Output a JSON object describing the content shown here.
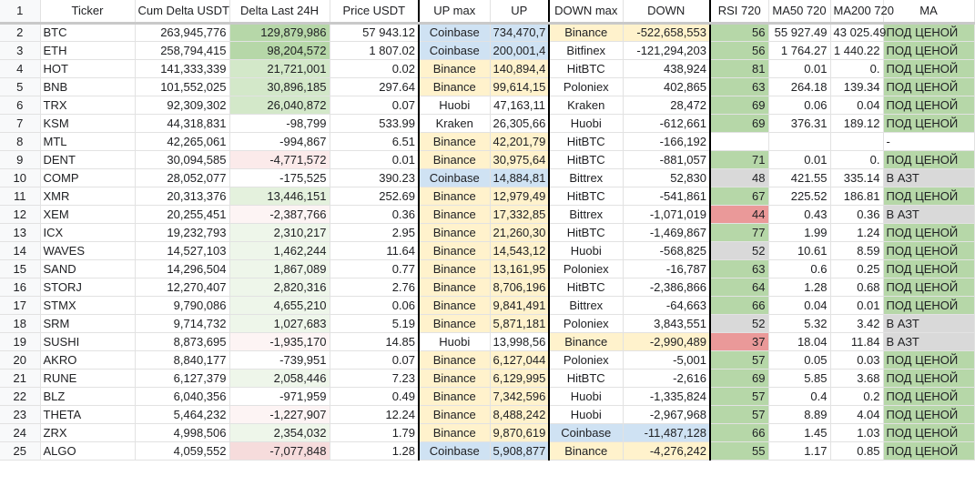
{
  "headers": [
    "",
    "Ticker",
    "Cum Delta USDT",
    "Delta Last 24H",
    "Price USDT",
    "UP max",
    "UP",
    "DOWN max",
    "DOWN",
    "RSI 720",
    "MA50 720",
    "MA200 720",
    "MA"
  ],
  "rows": [
    [
      "2",
      "BTC",
      "263,945,776",
      "129,879,986",
      "57 943.12",
      "Coinbase",
      "734,470,7",
      "Binance",
      "-522,658,553",
      "56",
      "55 927.49",
      "43 025.49",
      "ПОД ЦЕНОЙ"
    ],
    [
      "3",
      "ETH",
      "258,794,415",
      "98,204,572",
      "1 807.02",
      "Coinbase",
      "200,001,4",
      "Bitfinex",
      "-121,294,203",
      "56",
      "1 764.27",
      "1 440.22",
      "ПОД ЦЕНОЙ"
    ],
    [
      "4",
      "HOT",
      "141,333,339",
      "21,721,001",
      "0.02",
      "Binance",
      "140,894,4",
      "HitBTC",
      "438,924",
      "81",
      "0.01",
      "0.",
      "ПОД ЦЕНОЙ"
    ],
    [
      "5",
      "BNB",
      "101,552,025",
      "30,896,185",
      "297.64",
      "Binance",
      "99,614,15",
      "Poloniex",
      "402,865",
      "63",
      "264.18",
      "139.34",
      "ПОД ЦЕНОЙ"
    ],
    [
      "6",
      "TRX",
      "92,309,302",
      "26,040,872",
      "0.07",
      "Huobi",
      "47,163,11",
      "Kraken",
      "28,472",
      "69",
      "0.06",
      "0.04",
      "ПОД ЦЕНОЙ"
    ],
    [
      "7",
      "KSM",
      "44,318,831",
      "-98,799",
      "533.99",
      "Kraken",
      "26,305,66",
      "Huobi",
      "-612,661",
      "69",
      "376.31",
      "189.12",
      "ПОД ЦЕНОЙ"
    ],
    [
      "8",
      "MTL",
      "42,265,061",
      "-994,867",
      "6.51",
      "Binance",
      "42,201,79",
      "HitBTC",
      "-166,192",
      "",
      "",
      "",
      "-"
    ],
    [
      "9",
      "DENT",
      "30,094,585",
      "-4,771,572",
      "0.01",
      "Binance",
      "30,975,64",
      "HitBTC",
      "-881,057",
      "71",
      "0.01",
      "0.",
      "ПОД ЦЕНОЙ"
    ],
    [
      "10",
      "COMP",
      "28,052,077",
      "-175,525",
      "390.23",
      "Coinbase",
      "14,884,81",
      "Bittrex",
      "52,830",
      "48",
      "421.55",
      "335.14",
      "В АЗТ"
    ],
    [
      "11",
      "XMR",
      "20,313,376",
      "13,446,151",
      "252.69",
      "Binance",
      "12,979,49",
      "HitBTC",
      "-541,861",
      "67",
      "225.52",
      "186.81",
      "ПОД ЦЕНОЙ"
    ],
    [
      "12",
      "XEM",
      "20,255,451",
      "-2,387,766",
      "0.36",
      "Binance",
      "17,332,85",
      "Bittrex",
      "-1,071,019",
      "44",
      "0.43",
      "0.36",
      "В АЗТ"
    ],
    [
      "13",
      "ICX",
      "19,232,793",
      "2,310,217",
      "2.95",
      "Binance",
      "21,260,30",
      "HitBTC",
      "-1,469,867",
      "77",
      "1.99",
      "1.24",
      "ПОД ЦЕНОЙ"
    ],
    [
      "14",
      "WAVES",
      "14,527,103",
      "1,462,244",
      "11.64",
      "Binance",
      "14,543,12",
      "Huobi",
      "-568,825",
      "52",
      "10.61",
      "8.59",
      "ПОД ЦЕНОЙ"
    ],
    [
      "15",
      "SAND",
      "14,296,504",
      "1,867,089",
      "0.77",
      "Binance",
      "13,161,95",
      "Poloniex",
      "-16,787",
      "63",
      "0.6",
      "0.25",
      "ПОД ЦЕНОЙ"
    ],
    [
      "16",
      "STORJ",
      "12,270,407",
      "2,820,316",
      "2.76",
      "Binance",
      "8,706,196",
      "HitBTC",
      "-2,386,866",
      "64",
      "1.28",
      "0.68",
      "ПОД ЦЕНОЙ"
    ],
    [
      "17",
      "STMX",
      "9,790,086",
      "4,655,210",
      "0.06",
      "Binance",
      "9,841,491",
      "Bittrex",
      "-64,663",
      "66",
      "0.04",
      "0.01",
      "ПОД ЦЕНОЙ"
    ],
    [
      "18",
      "SRM",
      "9,714,732",
      "1,027,683",
      "5.19",
      "Binance",
      "5,871,181",
      "Poloniex",
      "3,843,551",
      "52",
      "5.32",
      "3.42",
      "В АЗТ"
    ],
    [
      "19",
      "SUSHI",
      "8,873,695",
      "-1,935,170",
      "14.85",
      "Huobi",
      "13,998,56",
      "Binance",
      "-2,990,489",
      "37",
      "18.04",
      "11.84",
      "В АЗТ"
    ],
    [
      "20",
      "AKRO",
      "8,840,177",
      "-739,951",
      "0.07",
      "Binance",
      "6,127,044",
      "Poloniex",
      "-5,001",
      "57",
      "0.05",
      "0.03",
      "ПОД ЦЕНОЙ"
    ],
    [
      "21",
      "RUNE",
      "6,127,379",
      "2,058,446",
      "7.23",
      "Binance",
      "6,129,995",
      "HitBTC",
      "-2,616",
      "69",
      "5.85",
      "3.68",
      "ПОД ЦЕНОЙ"
    ],
    [
      "22",
      "BLZ",
      "6,040,356",
      "-971,959",
      "0.49",
      "Binance",
      "7,342,596",
      "Huobi",
      "-1,335,824",
      "57",
      "0.4",
      "0.2",
      "ПОД ЦЕНОЙ"
    ],
    [
      "23",
      "THETA",
      "5,464,232",
      "-1,227,907",
      "12.24",
      "Binance",
      "8,488,242",
      "Huobi",
      "-2,967,968",
      "57",
      "8.89",
      "4.04",
      "ПОД ЦЕНОЙ"
    ],
    [
      "24",
      "ZRX",
      "4,998,506",
      "2,354,032",
      "1.79",
      "Binance",
      "9,870,619",
      "Coinbase",
      "-11,487,128",
      "66",
      "1.45",
      "1.03",
      "ПОД ЦЕНОЙ"
    ],
    [
      "25",
      "ALGO",
      "4,059,552",
      "-7,077,848",
      "1.28",
      "Coinbase",
      "5,908,877",
      "Binance",
      "-4,276,242",
      "55",
      "1.17",
      "0.85",
      "ПОД ЦЕНОЙ"
    ]
  ],
  "colors": {
    "exchange_coinbase": "#cfe2f3",
    "exchange_binance": "#fff2cc",
    "rsi_green": "#b6d7a8",
    "rsi_red": "#ea9999",
    "rsi_gray": "#d9d9d9"
  }
}
